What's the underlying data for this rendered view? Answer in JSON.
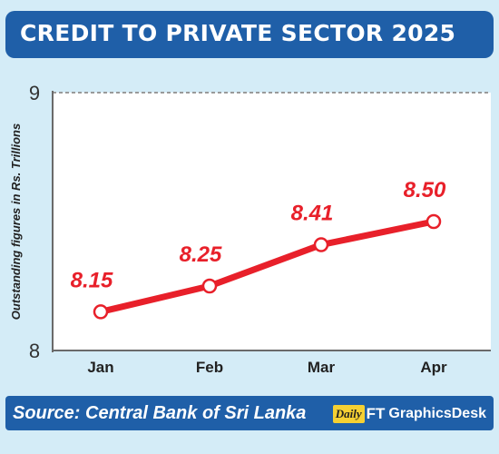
{
  "header": {
    "title": "CREDIT TO PRIVATE SECTOR 2025"
  },
  "footer": {
    "source": "Source: Central Bank of Sri Lanka",
    "logo_daily": "Daily",
    "logo_ft": "FT",
    "credit": "GraphicsDesk"
  },
  "colors": {
    "background": "#d4ecf7",
    "bar": "#1f5fa8",
    "line": "#e8202a",
    "label": "#e8202a"
  },
  "chart_data": {
    "type": "line",
    "categories": [
      "Jan",
      "Feb",
      "Mar",
      "Apr"
    ],
    "values": [
      8.15,
      8.25,
      8.41,
      8.5
    ],
    "value_labels": [
      "8.15",
      "8.25",
      "8.41",
      "8.50"
    ],
    "ylabel": "Outstanding figures in Rs. Trillions",
    "ylim": [
      8,
      9
    ],
    "yticks": [
      "8",
      "9"
    ],
    "grid": false
  }
}
